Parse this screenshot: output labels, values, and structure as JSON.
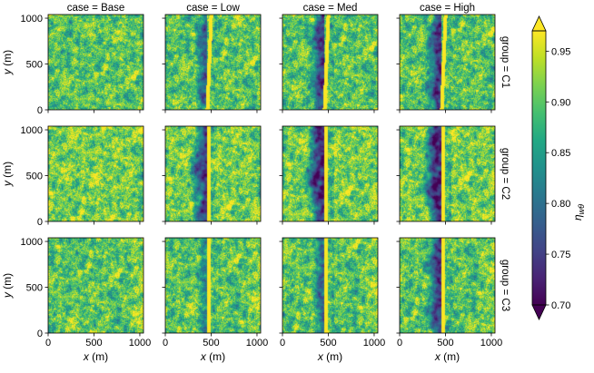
{
  "chart_data": {
    "type": "heatmap",
    "layout": "facet-grid",
    "columns": [
      "case = Base",
      "case = Low",
      "case = Med",
      "case = High"
    ],
    "rows": [
      "group = C1",
      "group = C2",
      "group = C3"
    ],
    "xlabel": "x (m)",
    "ylabel": "y (m)",
    "xlim": [
      0,
      1040
    ],
    "ylim": [
      0,
      1040
    ],
    "xticks": [
      0,
      500,
      1000
    ],
    "yticks": [
      0,
      500,
      1000
    ],
    "colorbar": {
      "label": "η_wθ",
      "label_main": "η",
      "label_sub": "wθ",
      "min": 0.7,
      "max": 0.97,
      "ticks": [
        "0.70",
        "0.75",
        "0.80",
        "0.85",
        "0.90",
        "0.95"
      ],
      "colormap": "viridis",
      "extend": "both"
    },
    "barrier": {
      "x_center_m": 480,
      "width_m": 40,
      "present_in_cases": [
        "case = Low",
        "case = Med",
        "case = High"
      ]
    },
    "wake_intensity": {
      "C1": [
        0.0,
        0.55,
        0.75,
        0.8
      ],
      "C2": [
        0.0,
        0.85,
        1.0,
        1.0
      ],
      "C3": [
        0.0,
        0.35,
        0.55,
        0.8
      ]
    }
  }
}
